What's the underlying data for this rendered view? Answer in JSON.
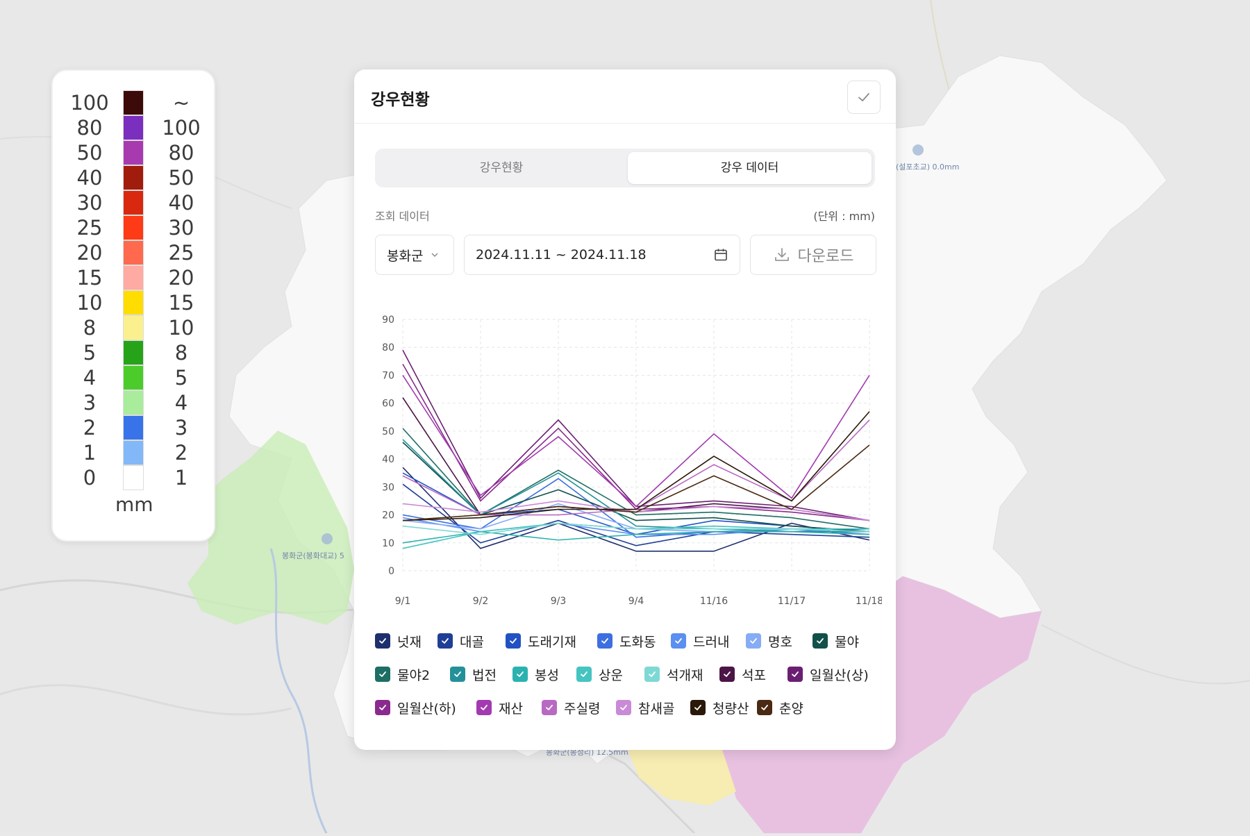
{
  "map": {
    "labels": [
      "(설포초교) 0.0mm",
      "봉화군(봉화대교) 5",
      "봉화군(봉성리) 12.5mm"
    ]
  },
  "legend": {
    "rows": [
      {
        "left": "100",
        "right": "~",
        "color": "#3d0a0a"
      },
      {
        "left": "80",
        "right": "100",
        "color": "#7b2fbe"
      },
      {
        "left": "50",
        "right": "80",
        "color": "#a83ab0"
      },
      {
        "left": "40",
        "right": "50",
        "color": "#a01c0c"
      },
      {
        "left": "30",
        "right": "40",
        "color": "#d8280f"
      },
      {
        "left": "25",
        "right": "30",
        "color": "#ff3a17"
      },
      {
        "left": "20",
        "right": "25",
        "color": "#ff6a4f"
      },
      {
        "left": "15",
        "right": "20",
        "color": "#ffaaa2"
      },
      {
        "left": "10",
        "right": "15",
        "color": "#ffdd00"
      },
      {
        "left": "8",
        "right": "10",
        "color": "#fbf08e"
      },
      {
        "left": "5",
        "right": "8",
        "color": "#27a31a"
      },
      {
        "left": "4",
        "right": "5",
        "color": "#4ccc2b"
      },
      {
        "left": "3",
        "right": "4",
        "color": "#a9ec9c"
      },
      {
        "left": "2",
        "right": "3",
        "color": "#3873e9"
      },
      {
        "left": "1",
        "right": "2",
        "color": "#82b8f8"
      },
      {
        "left": "0",
        "right": "1",
        "color": "#ffffff"
      }
    ],
    "unit": "mm"
  },
  "panel": {
    "title": "강우현황",
    "tabs": [
      {
        "label": "강우현황",
        "active": false
      },
      {
        "label": "강우 데이터",
        "active": true
      }
    ],
    "query_label": "조회 데이터",
    "unit_label": "(단위 : mm)",
    "region_select": "봉화군",
    "date_range": "2024.11.11 ~ 2024.11.18",
    "download_label": "다운로드"
  },
  "chart_data": {
    "type": "line",
    "categories": [
      "9/1",
      "9/2",
      "9/3",
      "9/4",
      "11/16",
      "11/17",
      "11/18"
    ],
    "ylim": [
      0,
      90
    ],
    "yticks": [
      0,
      10,
      20,
      30,
      40,
      50,
      60,
      70,
      80,
      90
    ],
    "grid": true,
    "series": [
      {
        "name": "넛재",
        "color": "#1e2f6e",
        "values": [
          37,
          8,
          17,
          7,
          7,
          17,
          11
        ]
      },
      {
        "name": "대골",
        "color": "#1f3f96",
        "values": [
          31,
          10,
          18,
          9,
          14,
          13,
          12
        ]
      },
      {
        "name": "도래기재",
        "color": "#2251c4",
        "values": [
          35,
          20,
          22,
          13,
          18,
          16,
          14
        ]
      },
      {
        "name": "도화동",
        "color": "#3d6fe0",
        "values": [
          20,
          15,
          33,
          12,
          14,
          14,
          15
        ]
      },
      {
        "name": "드러내",
        "color": "#5b8ff0",
        "values": [
          19,
          14,
          17,
          13,
          13,
          15,
          13
        ]
      },
      {
        "name": "명호",
        "color": "#86acf5",
        "values": [
          18,
          15,
          24,
          15,
          14,
          15,
          14
        ]
      },
      {
        "name": "물야",
        "color": "#12504a",
        "values": [
          46,
          20,
          29,
          18,
          19,
          16,
          14
        ]
      },
      {
        "name": "물야2",
        "color": "#1d6e64",
        "values": [
          51,
          20,
          36,
          20,
          21,
          19,
          15
        ]
      },
      {
        "name": "법전",
        "color": "#24919a",
        "values": [
          47,
          20,
          35,
          16,
          15,
          14,
          14
        ]
      },
      {
        "name": "봉성",
        "color": "#2bb2b0",
        "values": [
          10,
          14,
          11,
          13,
          14,
          14,
          13
        ]
      },
      {
        "name": "상운",
        "color": "#45c4c0",
        "values": [
          8,
          14,
          17,
          15,
          16,
          15,
          15
        ]
      },
      {
        "name": "석개재",
        "color": "#7ed8d4",
        "values": [
          16,
          13,
          17,
          15,
          15,
          15,
          14
        ]
      },
      {
        "name": "석포",
        "color": "#4b1547",
        "values": [
          62,
          20,
          23,
          21,
          24,
          22,
          18
        ]
      },
      {
        "name": "일월산(상)",
        "color": "#6a1f72",
        "values": [
          79,
          26,
          54,
          23,
          25,
          23,
          18
        ]
      },
      {
        "name": "일월산(하)",
        "color": "#8a2a8e",
        "values": [
          74,
          25,
          51,
          22,
          23,
          21,
          18
        ]
      },
      {
        "name": "재산",
        "color": "#a23ab0",
        "values": [
          70,
          27,
          48,
          23,
          49,
          26,
          70
        ]
      },
      {
        "name": "주실령",
        "color": "#b86ac2",
        "values": [
          34,
          20,
          20,
          22,
          38,
          25,
          54
        ]
      },
      {
        "name": "참새골",
        "color": "#c98ad6",
        "values": [
          24,
          21,
          25,
          21,
          23,
          22,
          18
        ]
      },
      {
        "name": "청량산",
        "color": "#2a1808",
        "values": [
          18,
          19,
          22,
          22,
          41,
          25,
          57
        ]
      },
      {
        "name": "춘양",
        "color": "#4a2a12",
        "values": [
          18,
          20,
          23,
          21,
          34,
          22,
          45
        ]
      }
    ]
  }
}
